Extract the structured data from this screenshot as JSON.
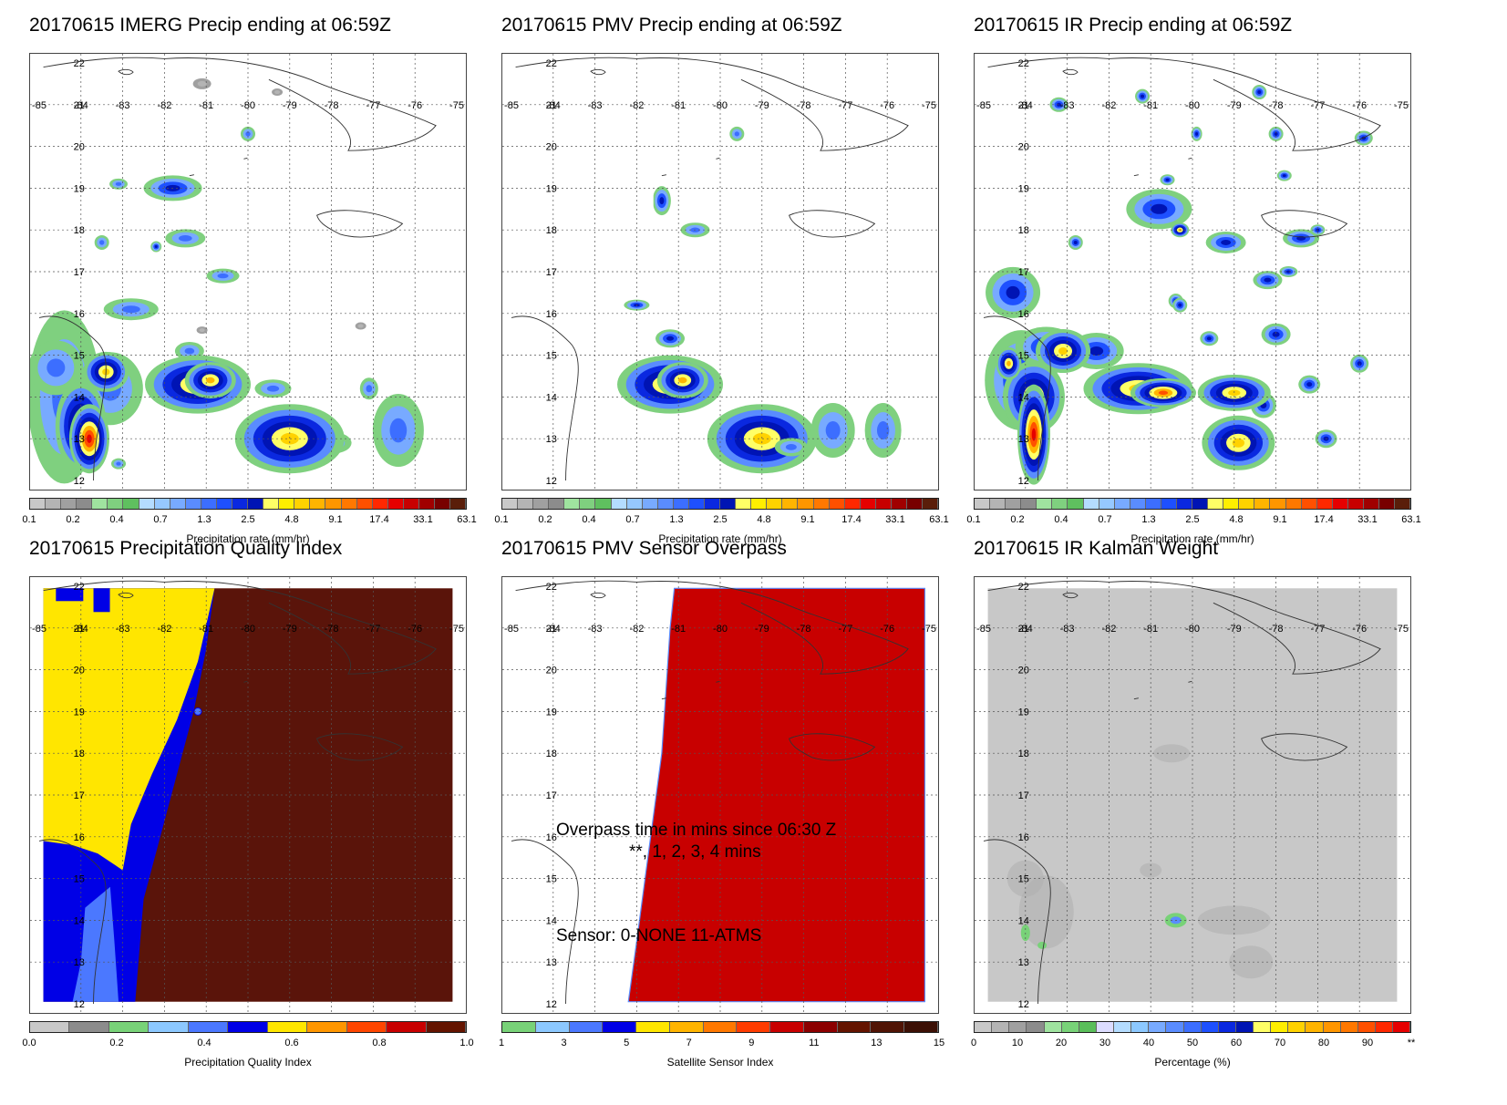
{
  "panels": [
    {
      "id": "imerg",
      "title": "20170615 IMERG Precip ending at 06:59Z",
      "colorbar_title": "Precipitation rate (mm/hr)",
      "colorbar_ticks": [
        "0.1",
        "0.2",
        "0.4",
        "0.7",
        "1.3",
        "2.5",
        "4.8",
        "9.1",
        "17.4",
        "33.1",
        "63.1"
      ]
    },
    {
      "id": "pmv",
      "title": "20170615 PMV Precip ending at 06:59Z",
      "colorbar_title": "Precipitation rate (mm/hr)",
      "colorbar_ticks": [
        "0.1",
        "0.2",
        "0.4",
        "0.7",
        "1.3",
        "2.5",
        "4.8",
        "9.1",
        "17.4",
        "33.1",
        "63.1"
      ]
    },
    {
      "id": "ir",
      "title": "20170615 IR Precip ending at 06:59Z",
      "colorbar_title": "Precipitation rate (mm/hr)",
      "colorbar_ticks": [
        "0.1",
        "0.2",
        "0.4",
        "0.7",
        "1.3",
        "2.5",
        "4.8",
        "9.1",
        "17.4",
        "33.1",
        "63.1"
      ]
    },
    {
      "id": "pqi",
      "title": "20170615 Precipitation Quality Index",
      "colorbar_title": "Precipitation Quality Index",
      "colorbar_ticks": [
        "0.0",
        "0.2",
        "0.4",
        "0.6",
        "0.8",
        "1.0"
      ]
    },
    {
      "id": "sensor",
      "title": "20170615 PMV Sensor Overpass",
      "colorbar_title": "Satellite Sensor Index",
      "colorbar_ticks": [
        "1",
        "3",
        "5",
        "7",
        "9",
        "11",
        "13",
        "15"
      ],
      "overpass_line1": "Overpass time in mins since 06:30 Z",
      "overpass_line2": "**, 1, 2, 3, 4 mins",
      "sensor_line": "Sensor:   0-NONE 11-ATMS"
    },
    {
      "id": "kalman",
      "title": "20170615 IR Kalman Weight",
      "colorbar_title": "Percentage (%)",
      "colorbar_ticks": [
        "0",
        "10",
        "20",
        "30",
        "40",
        "50",
        "60",
        "70",
        "80",
        "90",
        "**"
      ]
    }
  ],
  "map_axes": {
    "lon_labels": [
      "-85",
      "-84",
      "-83",
      "-82",
      "-81",
      "-80",
      "-79",
      "-78",
      "-77",
      "-76",
      "-75"
    ],
    "lat_labels": [
      "22",
      "21",
      "20",
      "19",
      "18",
      "17",
      "16",
      "15",
      "14",
      "13",
      "12"
    ]
  },
  "colors": {
    "precip_scale": [
      "#c8c8c8",
      "#b4b4b4",
      "#a0a0a0",
      "#8c8c8c",
      "#9fe39f",
      "#7fd07f",
      "#5fc05f",
      "#b4dcff",
      "#96c8ff",
      "#78aaff",
      "#5a8cff",
      "#3c6eff",
      "#1e50ff",
      "#0a28e0",
      "#0014b4",
      "#ffff66",
      "#ffee00",
      "#ffd200",
      "#ffb400",
      "#ff9600",
      "#ff7800",
      "#ff5000",
      "#ff2800",
      "#e60000",
      "#c80000",
      "#a00000",
      "#780000",
      "#5a1e0a"
    ],
    "pqi_scale": [
      "#c8c8c8",
      "#8c8c8c",
      "#78d278",
      "#8cc8ff",
      "#4b78ff",
      "#0000e6",
      "#ffe600",
      "#ff9600",
      "#ff4600",
      "#c80000",
      "#641400"
    ],
    "sensor_scale": [
      "#78d278",
      "#8cc8ff",
      "#4b78ff",
      "#0000e6",
      "#ffe600",
      "#ffb400",
      "#ff7800",
      "#ff3c00",
      "#c80000",
      "#8c0000",
      "#641400",
      "#501405",
      "#3c1005"
    ],
    "kalman_scale": [
      "#c8c8c8",
      "#b4b4b4",
      "#a0a0a0",
      "#8c8c8c",
      "#9fe39f",
      "#78d278",
      "#5abe5a",
      "#dcdcff",
      "#b4dcff",
      "#8cc8ff",
      "#78aaff",
      "#5a8cff",
      "#3c6eff",
      "#1e50ff",
      "#0a28e0",
      "#0014b4",
      "#ffff66",
      "#ffee00",
      "#ffd200",
      "#ffb400",
      "#ff9600",
      "#ff7800",
      "#ff5000",
      "#ff2800",
      "#e60000"
    ],
    "pqi_yellow": "#ffe600",
    "pqi_blue": "#0000e6",
    "pqi_lightblue": "#4b78ff",
    "pqi_brown": "#5a140a",
    "sensor_red": "#c80000",
    "kalman_gray": "#c8c8c8"
  },
  "chart_data": [
    {
      "type": "heatmap",
      "title": "20170615 IMERG Precip ending at 06:59Z",
      "xlabel": "",
      "ylabel": "",
      "colorbar_label": "Precipitation rate (mm/hr)",
      "xlim": [
        -85,
        -75
      ],
      "ylim": [
        12,
        22
      ],
      "colorbar_ticks": [
        0.1,
        0.2,
        0.4,
        0.7,
        1.3,
        2.5,
        4.8,
        9.1,
        17.4,
        33.1,
        63.1
      ]
    },
    {
      "type": "heatmap",
      "title": "20170615 PMV Precip ending at 06:59Z",
      "colorbar_label": "Precipitation rate (mm/hr)",
      "xlim": [
        -85,
        -75
      ],
      "ylim": [
        12,
        22
      ],
      "colorbar_ticks": [
        0.1,
        0.2,
        0.4,
        0.7,
        1.3,
        2.5,
        4.8,
        9.1,
        17.4,
        33.1,
        63.1
      ]
    },
    {
      "type": "heatmap",
      "title": "20170615 IR Precip ending at 06:59Z",
      "colorbar_label": "Precipitation rate (mm/hr)",
      "xlim": [
        -85,
        -75
      ],
      "ylim": [
        12,
        22
      ],
      "colorbar_ticks": [
        0.1,
        0.2,
        0.4,
        0.7,
        1.3,
        2.5,
        4.8,
        9.1,
        17.4,
        33.1,
        63.1
      ]
    },
    {
      "type": "heatmap",
      "title": "20170615 Precipitation Quality Index",
      "colorbar_label": "Precipitation Quality Index",
      "xlim": [
        -85,
        -75
      ],
      "ylim": [
        12,
        22
      ],
      "colorbar_ticks": [
        0.0,
        0.2,
        0.4,
        0.6,
        0.8,
        1.0
      ]
    },
    {
      "type": "heatmap",
      "title": "20170615 PMV Sensor Overpass",
      "colorbar_label": "Satellite Sensor Index",
      "xlim": [
        -85,
        -75
      ],
      "ylim": [
        12,
        22
      ],
      "colorbar_ticks": [
        1,
        3,
        5,
        7,
        9,
        11,
        13,
        15
      ]
    },
    {
      "type": "heatmap",
      "title": "20170615 IR Kalman Weight",
      "colorbar_label": "Percentage (%)",
      "xlim": [
        -85,
        -75
      ],
      "ylim": [
        12,
        22
      ],
      "colorbar_ticks": [
        "0",
        "10",
        "20",
        "30",
        "40",
        "50",
        "60",
        "70",
        "80",
        "90",
        "**"
      ]
    }
  ]
}
